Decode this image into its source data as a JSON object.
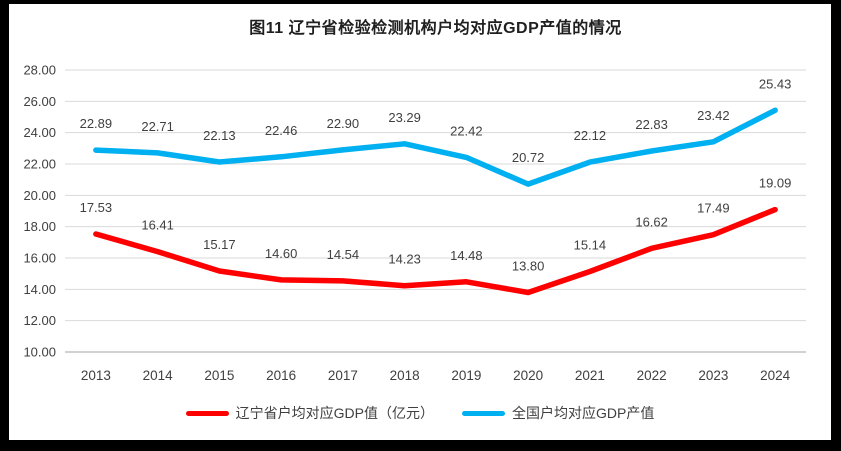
{
  "title": "图11 辽宁省检验检测机构户均对应GDP产值的情况",
  "chart_data": {
    "type": "line",
    "title": "图11 辽宁省检验检测机构户均对应GDP产值的情况",
    "categories": [
      "2013",
      "2014",
      "2015",
      "2016",
      "2017",
      "2018",
      "2019",
      "2020",
      "2021",
      "2022",
      "2023",
      "2024"
    ],
    "series": [
      {
        "name": "辽宁省户均对应GDP值（亿元）",
        "color": "#FF0000",
        "values": [
          17.53,
          16.41,
          15.17,
          14.6,
          14.54,
          14.23,
          14.48,
          13.8,
          15.14,
          16.62,
          17.49,
          19.09
        ]
      },
      {
        "name": "全国户均对应GDP产值",
        "color": "#00B0F0",
        "values": [
          22.89,
          22.71,
          22.13,
          22.46,
          22.9,
          23.29,
          22.42,
          20.72,
          22.12,
          22.83,
          23.42,
          25.43
        ]
      }
    ],
    "xlabel": "",
    "ylabel": "",
    "ylim": [
      10,
      28
    ],
    "ytick_step": 2,
    "ytick_decimals": 2,
    "grid": "horizontal-only",
    "legend_position": "bottom",
    "data_labels": true
  },
  "colors": {
    "frame_border": "#000000",
    "background": "#ffffff",
    "gridline": "#D9D9D9",
    "axis_line": "#A6A6A6",
    "tick_label": "#404040",
    "data_label": "#404040",
    "title_text": "#1f1f1f",
    "legend_text": "#404040",
    "series_red": "#FF0000",
    "series_blue": "#00B0F0"
  }
}
